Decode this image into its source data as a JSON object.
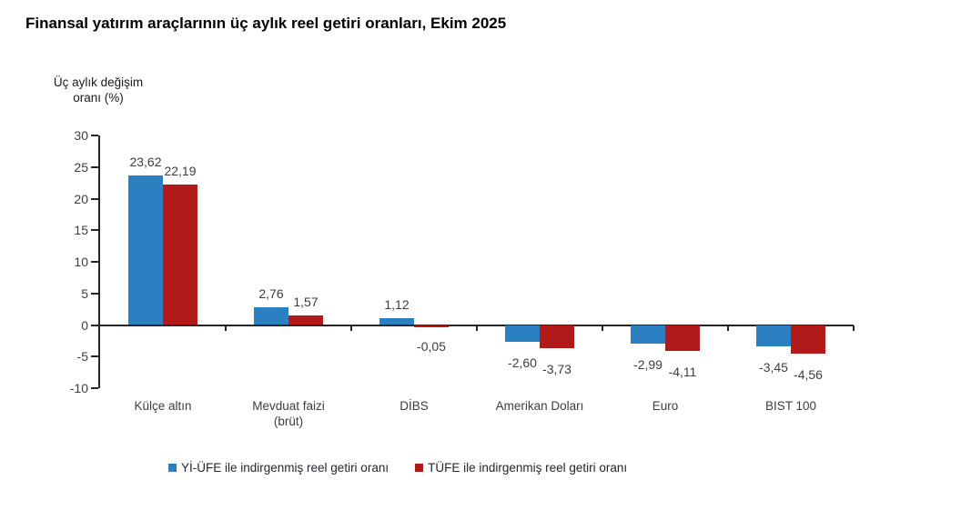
{
  "title": "Finansal yatırım araçlarının üç aylık reel getiri oranları, Ekim 2025",
  "y_axis_title": {
    "line1": "Üç aylık değişim",
    "line2": "oranı (%)"
  },
  "colors": {
    "series1": "#2b80c1",
    "series2": "#b21a1a",
    "axis": "#262626",
    "label_text": "#3c3c44"
  },
  "chart_data": {
    "type": "bar",
    "categories": [
      "Külçe altın",
      "Mevduat faizi\n(brüt)",
      "DİBS",
      "Amerikan Doları",
      "Euro",
      "BIST 100"
    ],
    "series": [
      {
        "name": "Yİ-ÜFE ile indirgenmiş reel getiri oranı",
        "color": "#2b80c1",
        "values": [
          23.62,
          2.76,
          1.12,
          -2.6,
          -2.99,
          -3.45
        ],
        "labels": [
          "23,62",
          "2,76",
          "1,12",
          "-2,60",
          "-2,99",
          "-3,45"
        ]
      },
      {
        "name": "TÜFE ile indirgenmiş reel getiri oranı",
        "color": "#b21a1a",
        "values": [
          22.19,
          1.57,
          -0.05,
          -3.73,
          -4.11,
          -4.56
        ],
        "labels": [
          "22,19",
          "1,57",
          "-0,05",
          "-3,73",
          "-4,11",
          "-4,56"
        ]
      }
    ],
    "title": "Finansal yatırım araçlarının üç aylık reel getiri oranları, Ekim 2025",
    "xlabel": "",
    "ylabel": "Üç aylık değişim oranı (%)",
    "ylim": [
      -10,
      30
    ],
    "yticks": [
      30,
      25,
      20,
      15,
      10,
      5,
      0,
      -5,
      -10
    ],
    "grid": false,
    "legend_position": "bottom"
  }
}
